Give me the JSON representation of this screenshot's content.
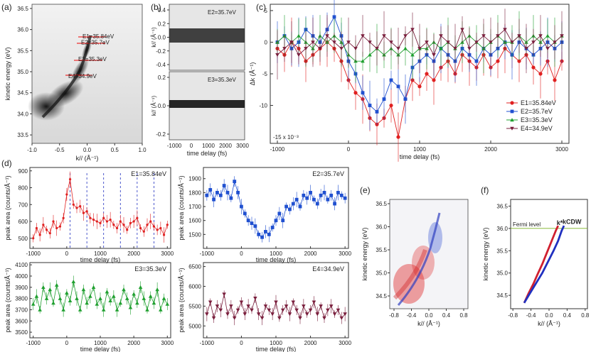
{
  "chart_data": [
    {
      "panel": "(a)",
      "type": "heatmap",
      "xlabel": "k// (Å⁻¹)",
      "ylabel": "kinetic energy (eV)",
      "xlim": [
        -1.0,
        1.0
      ],
      "ylim": [
        33.3,
        36.6
      ],
      "xticks": [
        "-1.0",
        "-0.5",
        "0.0",
        "0.5",
        "1.0"
      ],
      "yticks": [
        "33.5",
        "34.0",
        "34.5",
        "35.0",
        "35.5",
        "36.0",
        "36.5"
      ],
      "annotations": [
        {
          "label": "E1=35.84eV",
          "y": 35.84
        },
        {
          "label": "E2=35.7eV",
          "y": 35.7
        },
        {
          "label": "E3=35.3eV",
          "y": 35.3
        },
        {
          "label": "E4=34.9eV",
          "y": 34.9
        }
      ]
    },
    {
      "panel": "(b)",
      "type": "heatmap",
      "xlabel": "time delay (fs)",
      "ylabel": "k// (Å⁻¹)",
      "xticks": [
        "-1000",
        "0",
        "1000",
        "2000",
        "3000"
      ],
      "subplots": [
        {
          "label": "E2=35.7eV",
          "yticks": [
            "0.4",
            "0.2",
            "0.0",
            "-0.2",
            "-0.4"
          ]
        },
        {
          "label": "E3=35.3eV",
          "yticks": [
            "0.2",
            "0.0",
            "-0.2"
          ]
        }
      ]
    },
    {
      "panel": "(c)",
      "type": "line",
      "xlabel": "time delay (fs)",
      "ylabel": "Δk (Å⁻¹)",
      "scale_note": "-15 x 10⁻³",
      "xlim": [
        -1100,
        3100
      ],
      "ylim": [
        -16,
        6
      ],
      "xticks": [
        "-1000",
        "0",
        "1000",
        "2000",
        "3000"
      ],
      "yticks": [
        "5",
        "0",
        "-5",
        "-10"
      ],
      "legend_position": "bottom-right",
      "x": [
        -1000,
        -900,
        -800,
        -700,
        -600,
        -500,
        -400,
        -300,
        -200,
        -100,
        0,
        100,
        200,
        300,
        400,
        500,
        600,
        700,
        800,
        900,
        1000,
        1100,
        1200,
        1300,
        1400,
        1500,
        1600,
        1700,
        1800,
        1900,
        2000,
        2100,
        2200,
        2300,
        2400,
        2500,
        2600,
        2700,
        2800,
        2900,
        3000
      ],
      "series": [
        {
          "name": "E1=35.84eV",
          "color": "#e02020",
          "marker": "circle",
          "values": [
            -1,
            -2,
            0,
            -1,
            -3,
            -2,
            -1,
            0,
            -1,
            -3,
            -6,
            -8,
            -9,
            -12,
            -13,
            -12,
            -10,
            -15,
            -9,
            -6,
            -7,
            -5,
            -6,
            -4,
            -3,
            -5,
            -2,
            -3,
            -4,
            -2,
            -4,
            -3,
            -1,
            -2,
            -3,
            -2,
            -4,
            -5,
            -3,
            -6,
            -3
          ]
        },
        {
          "name": "E2=35.7eV",
          "color": "#2050d0",
          "marker": "square",
          "values": [
            0,
            1,
            -1,
            0,
            2,
            1,
            0,
            2,
            4,
            1,
            -3,
            -5,
            -8,
            -10,
            -11,
            -9,
            -6,
            -7,
            -9,
            -4,
            -3,
            -2,
            -3,
            -1,
            -2,
            -3,
            -1,
            -2,
            -3,
            -1,
            -2,
            -1,
            0,
            -2,
            0,
            -1,
            -2,
            -1,
            0,
            -1,
            0
          ]
        },
        {
          "name": "E3=35.3eV",
          "color": "#20a030",
          "marker": "triangle",
          "values": [
            0,
            1,
            0,
            1,
            0,
            -1,
            1,
            0,
            1,
            0,
            -2,
            -3,
            -3,
            -2,
            -1,
            -2,
            -1,
            -2,
            -1,
            -2,
            -1,
            -1,
            0,
            -1,
            0,
            -1,
            0,
            1,
            0,
            -1,
            0,
            1,
            0,
            0,
            1,
            0,
            1,
            0,
            1,
            0,
            1
          ]
        },
        {
          "name": "E4=34.9eV",
          "color": "#7a1f3d",
          "marker": "triangle-down",
          "values": [
            -2,
            -1,
            0,
            -2,
            -1,
            0,
            -1,
            1,
            0,
            -1,
            0,
            -1,
            1,
            0,
            -1,
            1,
            0,
            -1,
            1,
            2,
            -1,
            0,
            -2,
            1,
            0,
            -1,
            2,
            -1,
            0,
            1,
            0,
            1,
            2,
            0,
            1,
            -1,
            0,
            1,
            -1,
            0,
            1
          ]
        }
      ]
    },
    {
      "panel": "(d)",
      "type": "line",
      "xlabel": "time delay (fs)",
      "ylabel": "peak area (counts/Å⁻¹)",
      "x": [
        -1000,
        -900,
        -800,
        -700,
        -600,
        -500,
        -400,
        -300,
        -200,
        -100,
        0,
        100,
        200,
        300,
        400,
        500,
        600,
        700,
        800,
        900,
        1000,
        1100,
        1200,
        1300,
        1400,
        1500,
        1600,
        1700,
        1800,
        1900,
        2000,
        2100,
        2200,
        2300,
        2400,
        2500,
        2600,
        2700,
        2800,
        2900,
        3000
      ],
      "xticks": [
        "-1000",
        "0",
        "1000",
        "2000",
        "3000"
      ],
      "subplots": [
        {
          "name": "E1=35.84eV",
          "color": "#e02020",
          "ylim": [
            440,
            920
          ],
          "yticks": [
            "900",
            "800",
            "700",
            "600",
            "500"
          ],
          "vlines": [
            100,
            600,
            1100,
            1600,
            2100,
            2600
          ],
          "values": [
            500,
            560,
            520,
            580,
            550,
            530,
            600,
            560,
            570,
            620,
            760,
            850,
            700,
            680,
            690,
            650,
            660,
            620,
            610,
            600,
            590,
            620,
            600,
            610,
            580,
            560,
            600,
            580,
            550,
            590,
            600,
            620,
            560,
            540,
            580,
            600,
            570,
            550,
            560,
            520,
            580
          ]
        },
        {
          "name": "E2=35.7eV",
          "color": "#2050d0",
          "ylim": [
            1400,
            1980
          ],
          "yticks": [
            "1900",
            "1800",
            "1700",
            "1600",
            "1500"
          ],
          "values": [
            1780,
            1820,
            1750,
            1800,
            1780,
            1850,
            1800,
            1760,
            1880,
            1800,
            1700,
            1650,
            1600,
            1580,
            1560,
            1500,
            1480,
            1520,
            1500,
            1550,
            1600,
            1650,
            1600,
            1700,
            1680,
            1720,
            1750,
            1700,
            1780,
            1760,
            1800,
            1750,
            1720,
            1780,
            1800,
            1750,
            1780,
            1720,
            1800,
            1780,
            1760
          ]
        },
        {
          "name": "E3=35.3eV",
          "color": "#20a030",
          "ylim": [
            3450,
            4120
          ],
          "yticks": [
            "4100",
            "4000",
            "3900",
            "3800",
            "3700",
            "3600",
            "3500"
          ],
          "values": [
            3750,
            3820,
            3700,
            3900,
            3800,
            3880,
            3760,
            3920,
            3800,
            3700,
            3850,
            3780,
            3950,
            3800,
            3700,
            3880,
            3760,
            3820,
            3900,
            3750,
            3800,
            3700,
            3860,
            3780,
            3820,
            3700,
            3760,
            3880,
            3800,
            3720,
            3840,
            3760,
            3900,
            3800,
            3700,
            3820,
            3760,
            3880,
            3700,
            3800,
            3750
          ]
        },
        {
          "name": "E4=34.9eV",
          "color": "#7a1f3d",
          "ylim": [
            4700,
            6600
          ],
          "yticks": [
            "6500",
            "6000",
            "5500",
            "5000"
          ],
          "values": [
            5300,
            5600,
            5200,
            5500,
            5400,
            5800,
            5300,
            5500,
            5200,
            5400,
            5600,
            5300,
            5500,
            5400,
            5700,
            5300,
            5200,
            5500,
            5400,
            5300,
            5600,
            5200,
            5400,
            5500,
            5300,
            5600,
            5400,
            5200,
            5500,
            5300,
            5400,
            5600,
            5300,
            5500,
            5200,
            5400,
            5500,
            5300,
            5400,
            5200,
            5300
          ]
        }
      ]
    },
    {
      "panel": "(e)",
      "type": "heatmap",
      "xlabel": "k// (Å⁻¹)",
      "ylabel": "kinetic energy (eV)",
      "xticks": [
        "-0.8",
        "-0.4",
        "0.0",
        "0.4",
        "0.8"
      ],
      "yticks": [
        "36.5",
        "36.0",
        "35.5",
        "35.0",
        "34.5"
      ]
    },
    {
      "panel": "(f)",
      "type": "line",
      "xlabel": "k// (Å⁻¹)",
      "ylabel": "kinetic energy (eV)",
      "xlim": [
        -0.85,
        0.85
      ],
      "ylim": [
        34.2,
        36.65
      ],
      "xticks": [
        "-0.8",
        "-0.4",
        "0.0",
        "0.4",
        "0.8"
      ],
      "yticks": [
        "36.5",
        "36.0",
        "35.5",
        "35.0",
        "34.5"
      ],
      "annotations": [
        {
          "label": "Fermi level",
          "y": 36.0
        }
      ],
      "series": [
        {
          "name": "k*",
          "color": "#d02030",
          "x": [
            -0.55,
            -0.45,
            -0.35,
            -0.25,
            -0.15,
            -0.05,
            0.05,
            0.15,
            0.2
          ],
          "values": [
            34.33,
            34.55,
            34.75,
            34.98,
            35.2,
            35.45,
            35.7,
            35.95,
            36.06
          ]
        },
        {
          "name": "kCDW",
          "color": "#2030c0",
          "x": [
            -0.55,
            -0.45,
            -0.3,
            -0.15,
            0.0,
            0.1,
            0.2,
            0.28,
            0.33
          ],
          "values": [
            34.33,
            34.5,
            34.75,
            35.0,
            35.3,
            35.5,
            35.72,
            35.95,
            36.06
          ]
        }
      ]
    }
  ],
  "labels": {
    "a": "(a)",
    "b": "(b)",
    "c": "(c)",
    "d": "(d)",
    "e": "(e)",
    "f": "(f)",
    "fermi": "Fermi level",
    "kstar": "k*",
    "kcdw": "kCDW"
  },
  "colors": {
    "red": "#e02020",
    "blue": "#2050d0",
    "green": "#20a030",
    "maroon": "#7a1f3d"
  }
}
